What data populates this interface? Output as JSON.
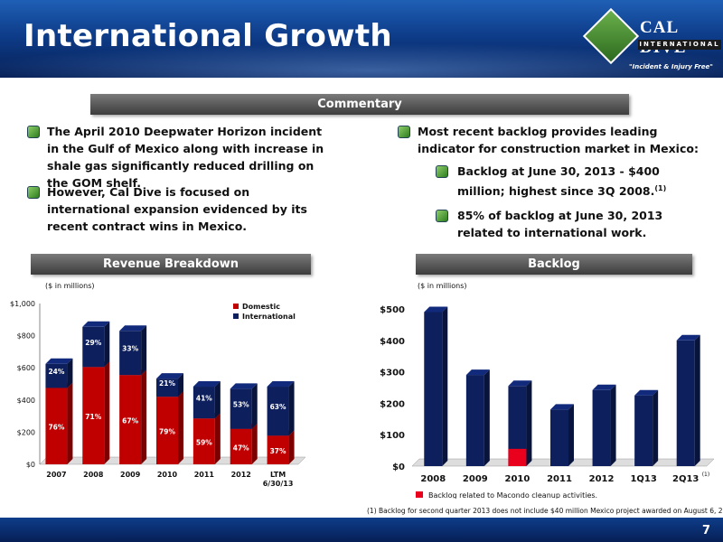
{
  "header": {
    "title": "International Growth"
  },
  "logo": {
    "name": "CAL DIVE",
    "sub": "INTERNATIONAL",
    "tagline": "\"Incident & Injury Free\""
  },
  "commentary": {
    "label": "Commentary",
    "left": [
      "The April 2010 Deepwater Horizon incident in the Gulf of Mexico along with increase in shale gas significantly reduced drilling on the GOM shelf.",
      "However, Cal Dive is focused on international expansion evidenced by its recent contract wins in Mexico."
    ],
    "right_main": "Most recent backlog provides leading indicator for construction market in Mexico:",
    "right_sub1": "Backlog at June 30, 2013 - $400 million; highest since 3Q 2008.",
    "right_sub1_sup": "(1)",
    "right_sub2": "85% of backlog at June 30, 2013 related to international work."
  },
  "revenue": {
    "label": "Revenue Breakdown",
    "units": "($ in millions)"
  },
  "backlog": {
    "label": "Backlog",
    "units": "($ in millions)",
    "legend": "Backlog related to Macondo cleanup activities.",
    "footnote": "(1) Backlog for second quarter 2013 does not include $40 million Mexico project awarded on August 6, 2013."
  },
  "page_number": "7",
  "colors": {
    "domestic": "#c00000",
    "international": "#0d1f5c",
    "macondo": "#e8001c",
    "accent": "#0e3d8a"
  },
  "chart_data": [
    {
      "type": "bar",
      "stacked": true,
      "categories": [
        "2007",
        "2008",
        "2009",
        "2010",
        "2011",
        "2012",
        "LTM 6/30/13"
      ],
      "series": [
        {
          "name": "Domestic",
          "values": [
            475,
            605,
            555,
            420,
            285,
            220,
            178
          ],
          "labels": [
            "76%",
            "71%",
            "67%",
            "79%",
            "59%",
            "47%",
            "37%"
          ]
        },
        {
          "name": "International",
          "values": [
            150,
            250,
            275,
            113,
            198,
            250,
            305
          ],
          "labels": [
            "24%",
            "29%",
            "33%",
            "21%",
            "41%",
            "53%",
            "63%"
          ]
        }
      ],
      "ylim": [
        0,
        1000
      ],
      "yticks": [
        "$0",
        "$200",
        "$400",
        "$600",
        "$800",
        "$1,000"
      ],
      "legend_position": "top-right"
    },
    {
      "type": "bar",
      "stacked": true,
      "categories": [
        "2008",
        "2009",
        "2010",
        "2011",
        "2012",
        "1Q13",
        "2Q13"
      ],
      "category_sup": {
        "6": "(1)"
      },
      "series": [
        {
          "name": "Backlog",
          "values": [
            490,
            290,
            255,
            180,
            242,
            225,
            400
          ]
        },
        {
          "name": "Macondo",
          "values": [
            0,
            0,
            55,
            0,
            0,
            0,
            0
          ]
        }
      ],
      "ylim": [
        0,
        500
      ],
      "yticks": [
        "$0",
        "$100",
        "$200",
        "$300",
        "$400",
        "$500"
      ],
      "grid": false,
      "legend_position": "bottom-left"
    }
  ]
}
